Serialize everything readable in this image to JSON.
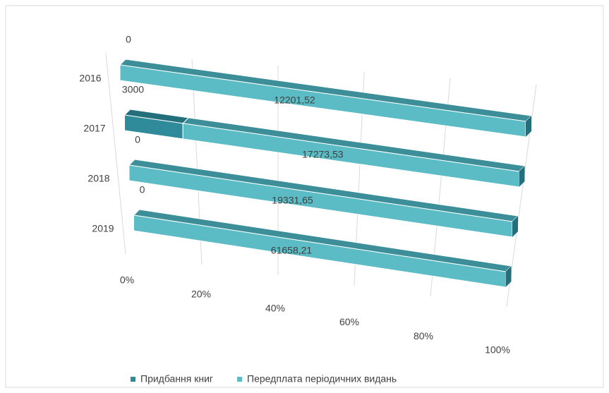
{
  "chart_data": {
    "type": "bar",
    "stacking": "percent",
    "orientation": "horizontal",
    "categories": [
      "2016",
      "2017",
      "2018",
      "2019"
    ],
    "series": [
      {
        "name": "Придбання книг",
        "color": "#2f8a9a",
        "values": [
          0,
          3000,
          0,
          0
        ]
      },
      {
        "name": "Передплата періодичних видань",
        "color": "#5bbcc6",
        "values": [
          12201.52,
          17273.53,
          19331.65,
          61658.21
        ],
        "value_labels": [
          "12201,52",
          "17273,53",
          "19331,65",
          "61658,21"
        ]
      }
    ],
    "xlim": [
      0,
      100
    ],
    "xticks": [
      {
        "value": 0,
        "label": "0%"
      },
      {
        "value": 20,
        "label": "20%"
      },
      {
        "value": 40,
        "label": "40%"
      },
      {
        "value": 60,
        "label": "60%"
      },
      {
        "value": 80,
        "label": "80%"
      },
      {
        "value": 100,
        "label": "100%"
      }
    ],
    "grid": true,
    "legend": "bottom"
  }
}
